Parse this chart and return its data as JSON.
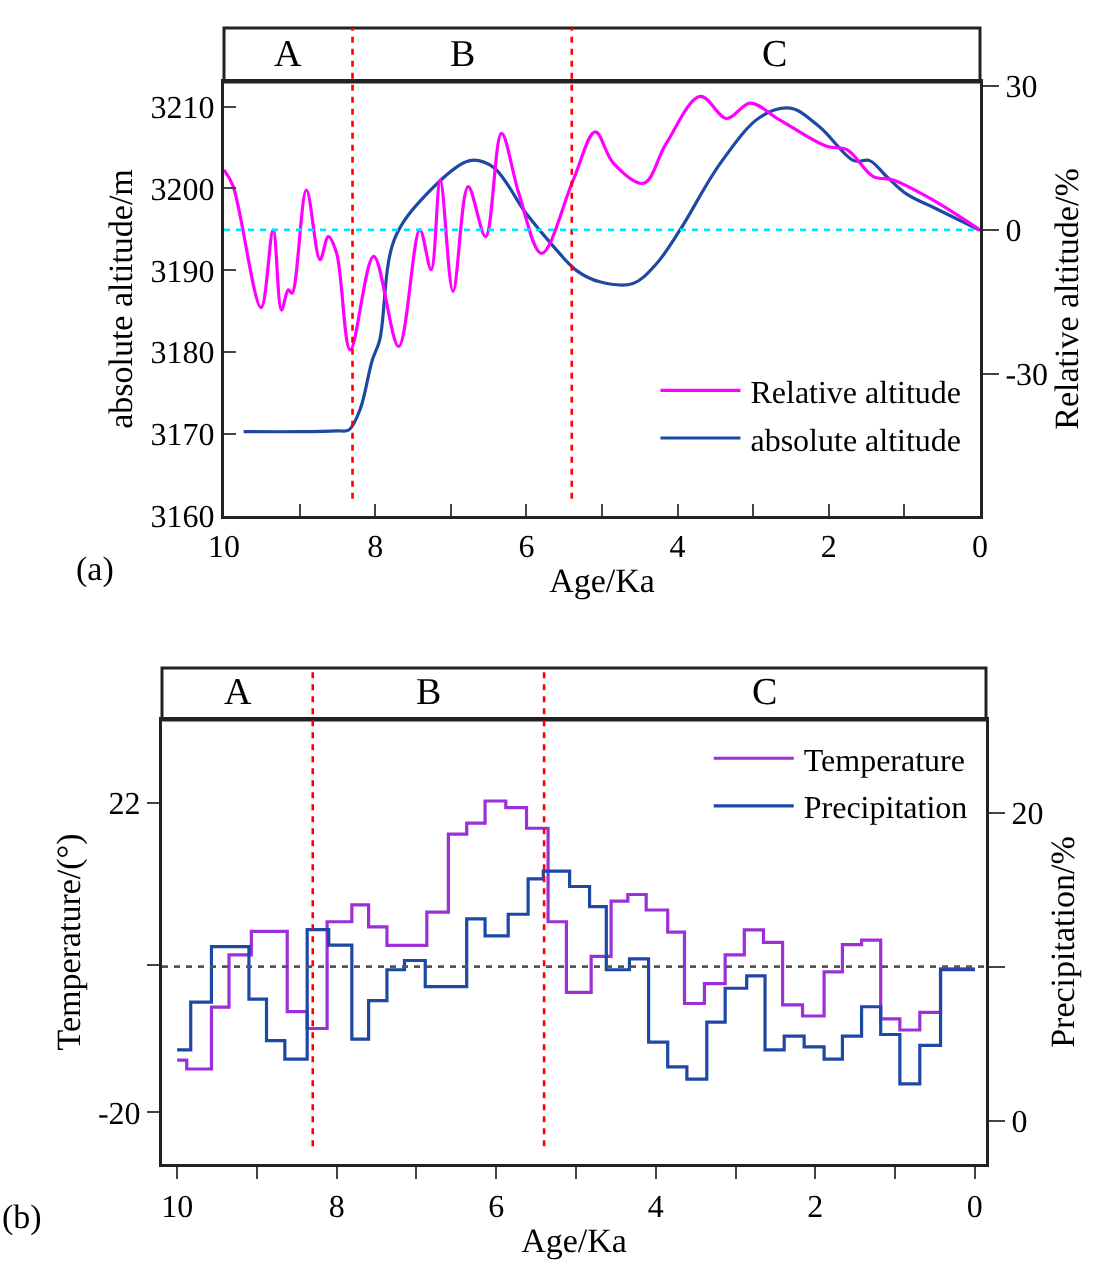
{
  "chart_data": [
    {
      "type": "line",
      "xlabel": "Age/Ka",
      "ylabel": "absolute altitude/m",
      "y2label": "Relative altitude/%",
      "xlim": [
        10,
        0
      ],
      "xticks": [
        10,
        {
          "value": 9,
          "label": null
        },
        8,
        {
          "value": 7,
          "label": null
        },
        6,
        {
          "value": 5,
          "label": null
        },
        4,
        {
          "value": 3,
          "label": null
        },
        2,
        {
          "value": 1,
          "label": null
        },
        0
      ],
      "ylim": [
        3160,
        3213
      ],
      "yticks": [
        3160,
        3170,
        3180,
        3190,
        3200,
        3210
      ],
      "y2lim": [
        -59.6,
        30.8
      ],
      "y2ticks": [
        -30,
        0,
        30
      ],
      "grid": false,
      "legend": "bottom right",
      "marker": "none",
      "line_style": "solid",
      "series": [
        {
          "name": "Relative altitude",
          "color": "#ff00ff",
          "axis": "y2",
          "x": [
            10,
            9.88,
            9.51,
            9.35,
            9.24,
            9.15,
            9.1,
            8.91,
            8.73,
            8.62,
            8.51,
            8.33,
            8.02,
            7.69,
            7.41,
            7.26,
            7.14,
            6.97,
            6.77,
            6.54,
            6.33,
            6.1,
            5.8,
            5.38,
            5.09,
            4.85,
            4.45,
            4.15,
            3.7,
            3.35,
            3.04,
            2.65,
            2.03,
            1.76,
            1.41,
            1.15,
            0.62,
            0
          ],
          "values": [
            12.5,
            9.1,
            -16.2,
            0,
            -16.7,
            -12.5,
            -13.2,
            8.3,
            -6.2,
            -1.4,
            -4.9,
            -25,
            -5.5,
            -24.3,
            0,
            -8.3,
            10.4,
            -12.8,
            9,
            -1.4,
            20.1,
            7.6,
            -4.9,
            10.4,
            20.4,
            13.9,
            9.7,
            18,
            27.8,
            23.2,
            26.4,
            22.9,
            17.4,
            16.7,
            11.1,
            10.4,
            6.2,
            0
          ]
        },
        {
          "name": "absolute altitude",
          "color": "#1d48a3",
          "x": [
            9.74,
            9,
            8.5,
            8.35,
            8.2,
            8.04,
            7.94,
            7.75,
            7.32,
            6.75,
            6.44,
            6,
            5.64,
            5.34,
            5.03,
            4.59,
            4.28,
            3.97,
            3.44,
            2.91,
            2.51,
            2.12,
            1.67,
            1.46,
            1.23,
            0.97,
            0.62,
            0
          ],
          "values": [
            3170.3,
            3170.3,
            3170.4,
            3170.5,
            3173,
            3179,
            3181.5,
            3193.7,
            3199.3,
            3203.4,
            3202.6,
            3196.9,
            3192.9,
            3190,
            3188.6,
            3188.4,
            3190.8,
            3194.9,
            3203,
            3208.7,
            3209.8,
            3207.5,
            3203.4,
            3203.4,
            3201.4,
            3199.3,
            3197.7,
            3194.9
          ]
        }
      ],
      "ref_lines": [
        {
          "axis": "x",
          "value": 8.3,
          "color": "#ff0000",
          "line_style": "dotted"
        },
        {
          "axis": "x",
          "value": 5.4,
          "color": "#ff0000",
          "line_style": "dotted"
        },
        {
          "axis": "y2",
          "value": 0,
          "color": "#00e5ff",
          "line_style": "dotted"
        }
      ],
      "annotations": [
        "A",
        "B",
        "C",
        "(a)"
      ]
    },
    {
      "type": "step",
      "xlabel": "Age/Ka",
      "ylabel": "Temperature/(°)",
      "y2label": "Precipitation/%",
      "xlim": [
        10.19,
        -0.14
      ],
      "xticks": [
        10,
        {
          "value": 9,
          "label": null
        },
        8,
        {
          "value": 7,
          "label": null
        },
        6,
        {
          "value": 5,
          "label": null
        },
        4,
        {
          "value": 3,
          "label": null
        },
        2,
        {
          "value": 1,
          "label": null
        },
        0
      ],
      "ylim": [
        -27,
        33.3
      ],
      "yticks": [
        -20,
        {
          "value": 0,
          "label": null
        },
        22
      ],
      "y2lim": [
        -2.8,
        26
      ],
      "y2ticks": [
        0,
        {
          "value": 10,
          "label": null
        },
        20
      ],
      "grid": false,
      "legend": "top right",
      "marker": "none",
      "line_style": "solid",
      "series": [
        {
          "name": "Temperature",
          "color": "#9b30d9",
          "x": [
            10,
            9.88,
            9.57,
            9.35,
            9.07,
            8.62,
            8.37,
            8.12,
            7.81,
            7.6,
            7.37,
            6.87,
            6.6,
            6.37,
            6.14,
            5.88,
            5.62,
            5.35,
            5.12,
            4.81,
            4.56,
            4.35,
            4.12,
            3.85,
            3.64,
            3.39,
            3.13,
            2.89,
            2.65,
            2.41,
            2.16,
            1.89,
            1.66,
            1.42,
            1.18,
            0.94,
            0.69,
            0.43,
            0
          ],
          "values": [
            -12.9,
            -14.1,
            -5.7,
            1.4,
            4.6,
            -6.3,
            -8.6,
            5.9,
            8.2,
            5.2,
            2.7,
            7.2,
            17.8,
            19.3,
            22.3,
            21.4,
            18.6,
            5.9,
            -3.7,
            1.2,
            8.7,
            9.6,
            7.5,
            4.5,
            -5.2,
            -2.5,
            1.4,
            4.8,
            3.1,
            -5.4,
            -6.9,
            -0.9,
            2.8,
            3.4,
            -7.3,
            -8.8,
            -6.4,
            -0.5,
            -0.5
          ]
        },
        {
          "name": "Precipitation",
          "color": "#1d48a3",
          "axis": "y2",
          "x": [
            10,
            9.83,
            9.57,
            9.1,
            8.88,
            8.65,
            8.37,
            8.1,
            7.81,
            7.6,
            7.37,
            7.15,
            6.89,
            6.37,
            6.14,
            5.85,
            5.6,
            5.41,
            5.08,
            4.83,
            4.62,
            4.33,
            4.09,
            3.85,
            3.61,
            3.36,
            3.13,
            2.86,
            2.63,
            2.39,
            2.14,
            1.89,
            1.66,
            1.42,
            1.18,
            0.94,
            0.69,
            0.43,
            0
          ],
          "values": [
            4.6,
            7.7,
            11.3,
            7.9,
            5.2,
            4,
            12.4,
            11.4,
            5.3,
            7.8,
            9.8,
            10.4,
            8.7,
            13.1,
            12,
            13.4,
            15.7,
            16.2,
            15.2,
            13.9,
            9.8,
            10.5,
            5.1,
            3.5,
            2.7,
            6.4,
            8.6,
            9.4,
            4.6,
            5.5,
            4.8,
            4,
            5.5,
            7.4,
            5.6,
            2.4,
            4.9,
            9.8,
            9.8
          ]
        }
      ],
      "ref_lines": [
        {
          "axis": "x",
          "value": 8.3,
          "color": "#ff0000",
          "line_style": "dotted"
        },
        {
          "axis": "x",
          "value": 5.4,
          "color": "#ff0000",
          "line_style": "dotted"
        },
        {
          "axis": "y2",
          "value": 10,
          "color": "#555555",
          "line_style": "dotted"
        }
      ],
      "annotations": [
        "A",
        "B",
        "C",
        "(b)"
      ]
    }
  ]
}
